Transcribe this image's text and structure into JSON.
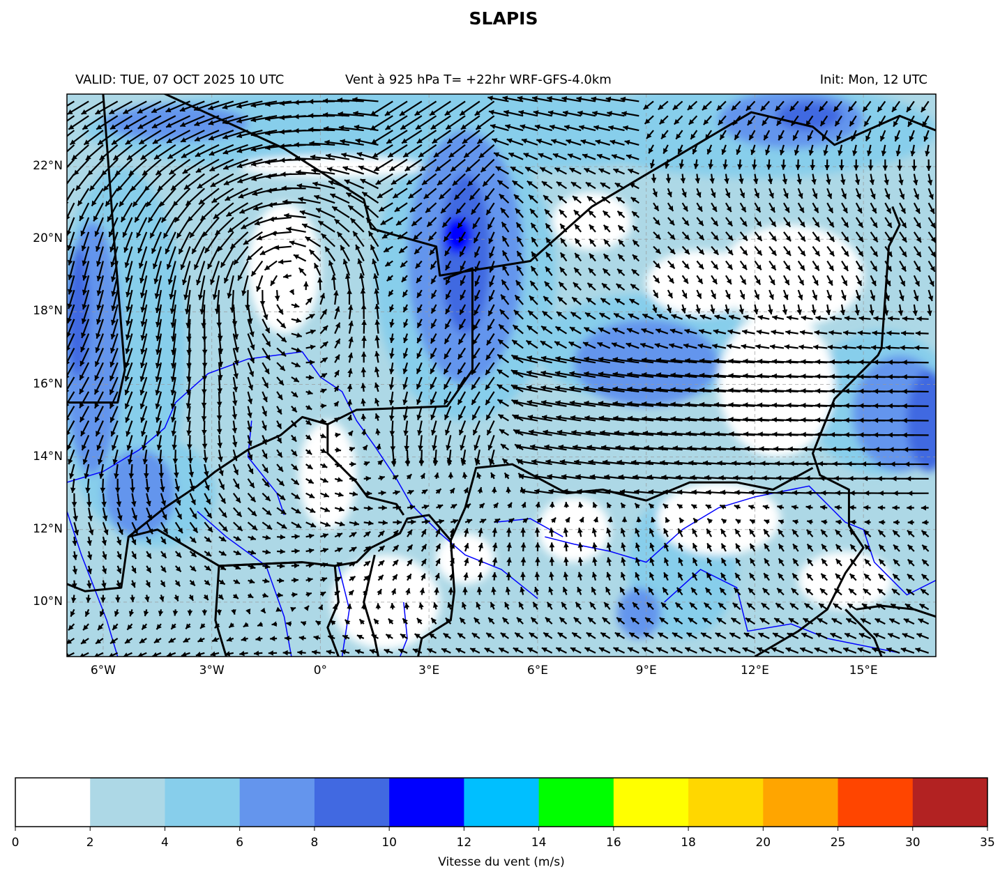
{
  "title": "SLAPIS",
  "header": {
    "valid": "VALID: TUE, 07 OCT 2025 10 UTC",
    "center": "Vent à 925 hPa T= +22hr  WRF-GFS-4.0km",
    "init": "Init: Mon, 12 UTC"
  },
  "map": {
    "lon_range": [
      -7,
      17
    ],
    "lat_range": [
      8.5,
      24
    ],
    "lon_ticks": [
      {
        "v": -6,
        "label": "6°W"
      },
      {
        "v": -3,
        "label": "3°W"
      },
      {
        "v": 0,
        "label": "0°"
      },
      {
        "v": 3,
        "label": "3°E"
      },
      {
        "v": 6,
        "label": "6°E"
      },
      {
        "v": 9,
        "label": "9°E"
      },
      {
        "v": 12,
        "label": "12°E"
      },
      {
        "v": 15,
        "label": "15°E"
      }
    ],
    "lat_ticks": [
      {
        "v": 10,
        "label": "10°N"
      },
      {
        "v": 12,
        "label": "12°N"
      },
      {
        "v": 14,
        "label": "14°N"
      },
      {
        "v": 16,
        "label": "16°N"
      },
      {
        "v": 18,
        "label": "18°N"
      },
      {
        "v": 20,
        "label": "20°N"
      },
      {
        "v": 22,
        "label": "22°N"
      }
    ],
    "gridlines": true,
    "border_color": "#000000",
    "river_color": "#0000ff"
  },
  "colorbar": {
    "label": "Vitesse du vent (m/s)",
    "levels": [
      "0",
      "2",
      "4",
      "6",
      "8",
      "10",
      "12",
      "14",
      "16",
      "18",
      "20",
      "25",
      "30",
      "35"
    ],
    "colors": [
      "#ffffff",
      "#add8e6",
      "#87ceeb",
      "#6495ed",
      "#4169e1",
      "#0000ff",
      "#00bfff",
      "#00ff00",
      "#ffff00",
      "#ffd700",
      "#ffa500",
      "#ff4500",
      "#b22222"
    ]
  }
}
